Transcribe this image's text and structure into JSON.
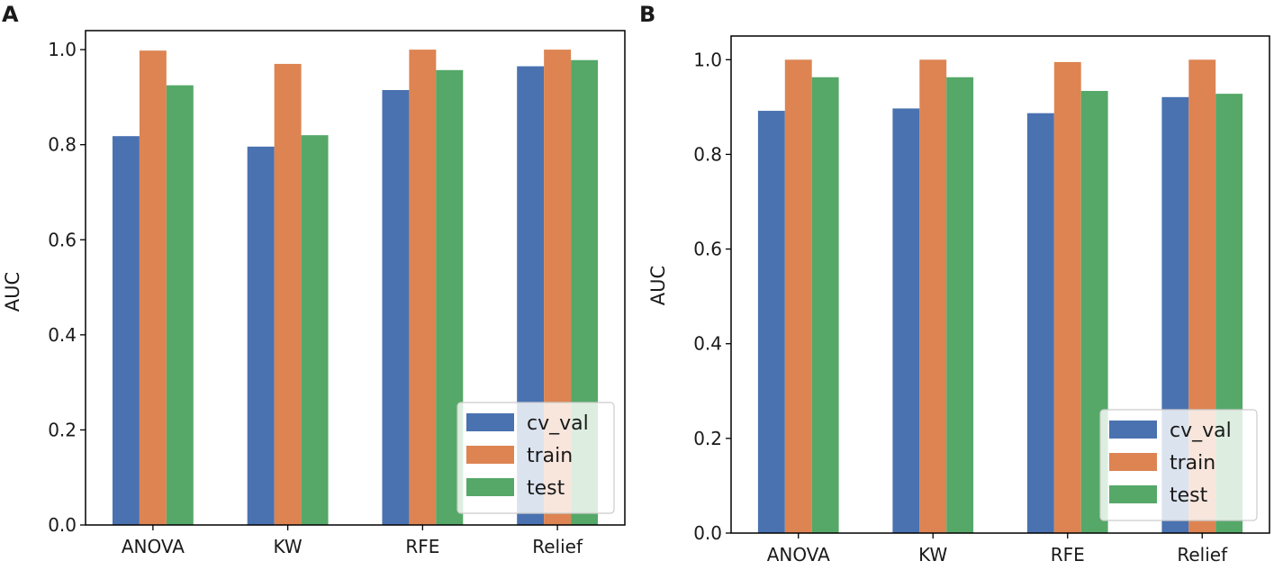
{
  "colors": {
    "cv_val": "#4a72b0",
    "train": "#dd8452",
    "test": "#55a868",
    "axis": "#000000"
  },
  "chart_data": [
    {
      "panel": "A",
      "type": "bar",
      "title": "",
      "xlabel": "",
      "ylabel": "AUC",
      "ylim": [
        0,
        1.04
      ],
      "yticks": [
        "0.0",
        "0.2",
        "0.4",
        "0.6",
        "0.8",
        "1.0"
      ],
      "categories": [
        "ANOVA",
        "KW",
        "RFE",
        "Relief"
      ],
      "legend_position": "bottom-right",
      "series": [
        {
          "name": "cv_val",
          "values": [
            0.818,
            0.796,
            0.915,
            0.965
          ]
        },
        {
          "name": "train",
          "values": [
            0.998,
            0.97,
            1.0,
            1.0
          ]
        },
        {
          "name": "test",
          "values": [
            0.925,
            0.82,
            0.957,
            0.978
          ]
        }
      ]
    },
    {
      "panel": "B",
      "type": "bar",
      "title": "",
      "xlabel": "",
      "ylabel": "AUC",
      "ylim": [
        0,
        1.05
      ],
      "yticks": [
        "0.0",
        "0.2",
        "0.4",
        "0.6",
        "0.8",
        "1.0"
      ],
      "categories": [
        "ANOVA",
        "KW",
        "RFE",
        "Relief"
      ],
      "legend_position": "bottom-right",
      "series": [
        {
          "name": "cv_val",
          "values": [
            0.892,
            0.897,
            0.887,
            0.921
          ]
        },
        {
          "name": "train",
          "values": [
            1.0,
            1.0,
            0.995,
            1.0
          ]
        },
        {
          "name": "test",
          "values": [
            0.963,
            0.963,
            0.934,
            0.928
          ]
        }
      ]
    }
  ]
}
